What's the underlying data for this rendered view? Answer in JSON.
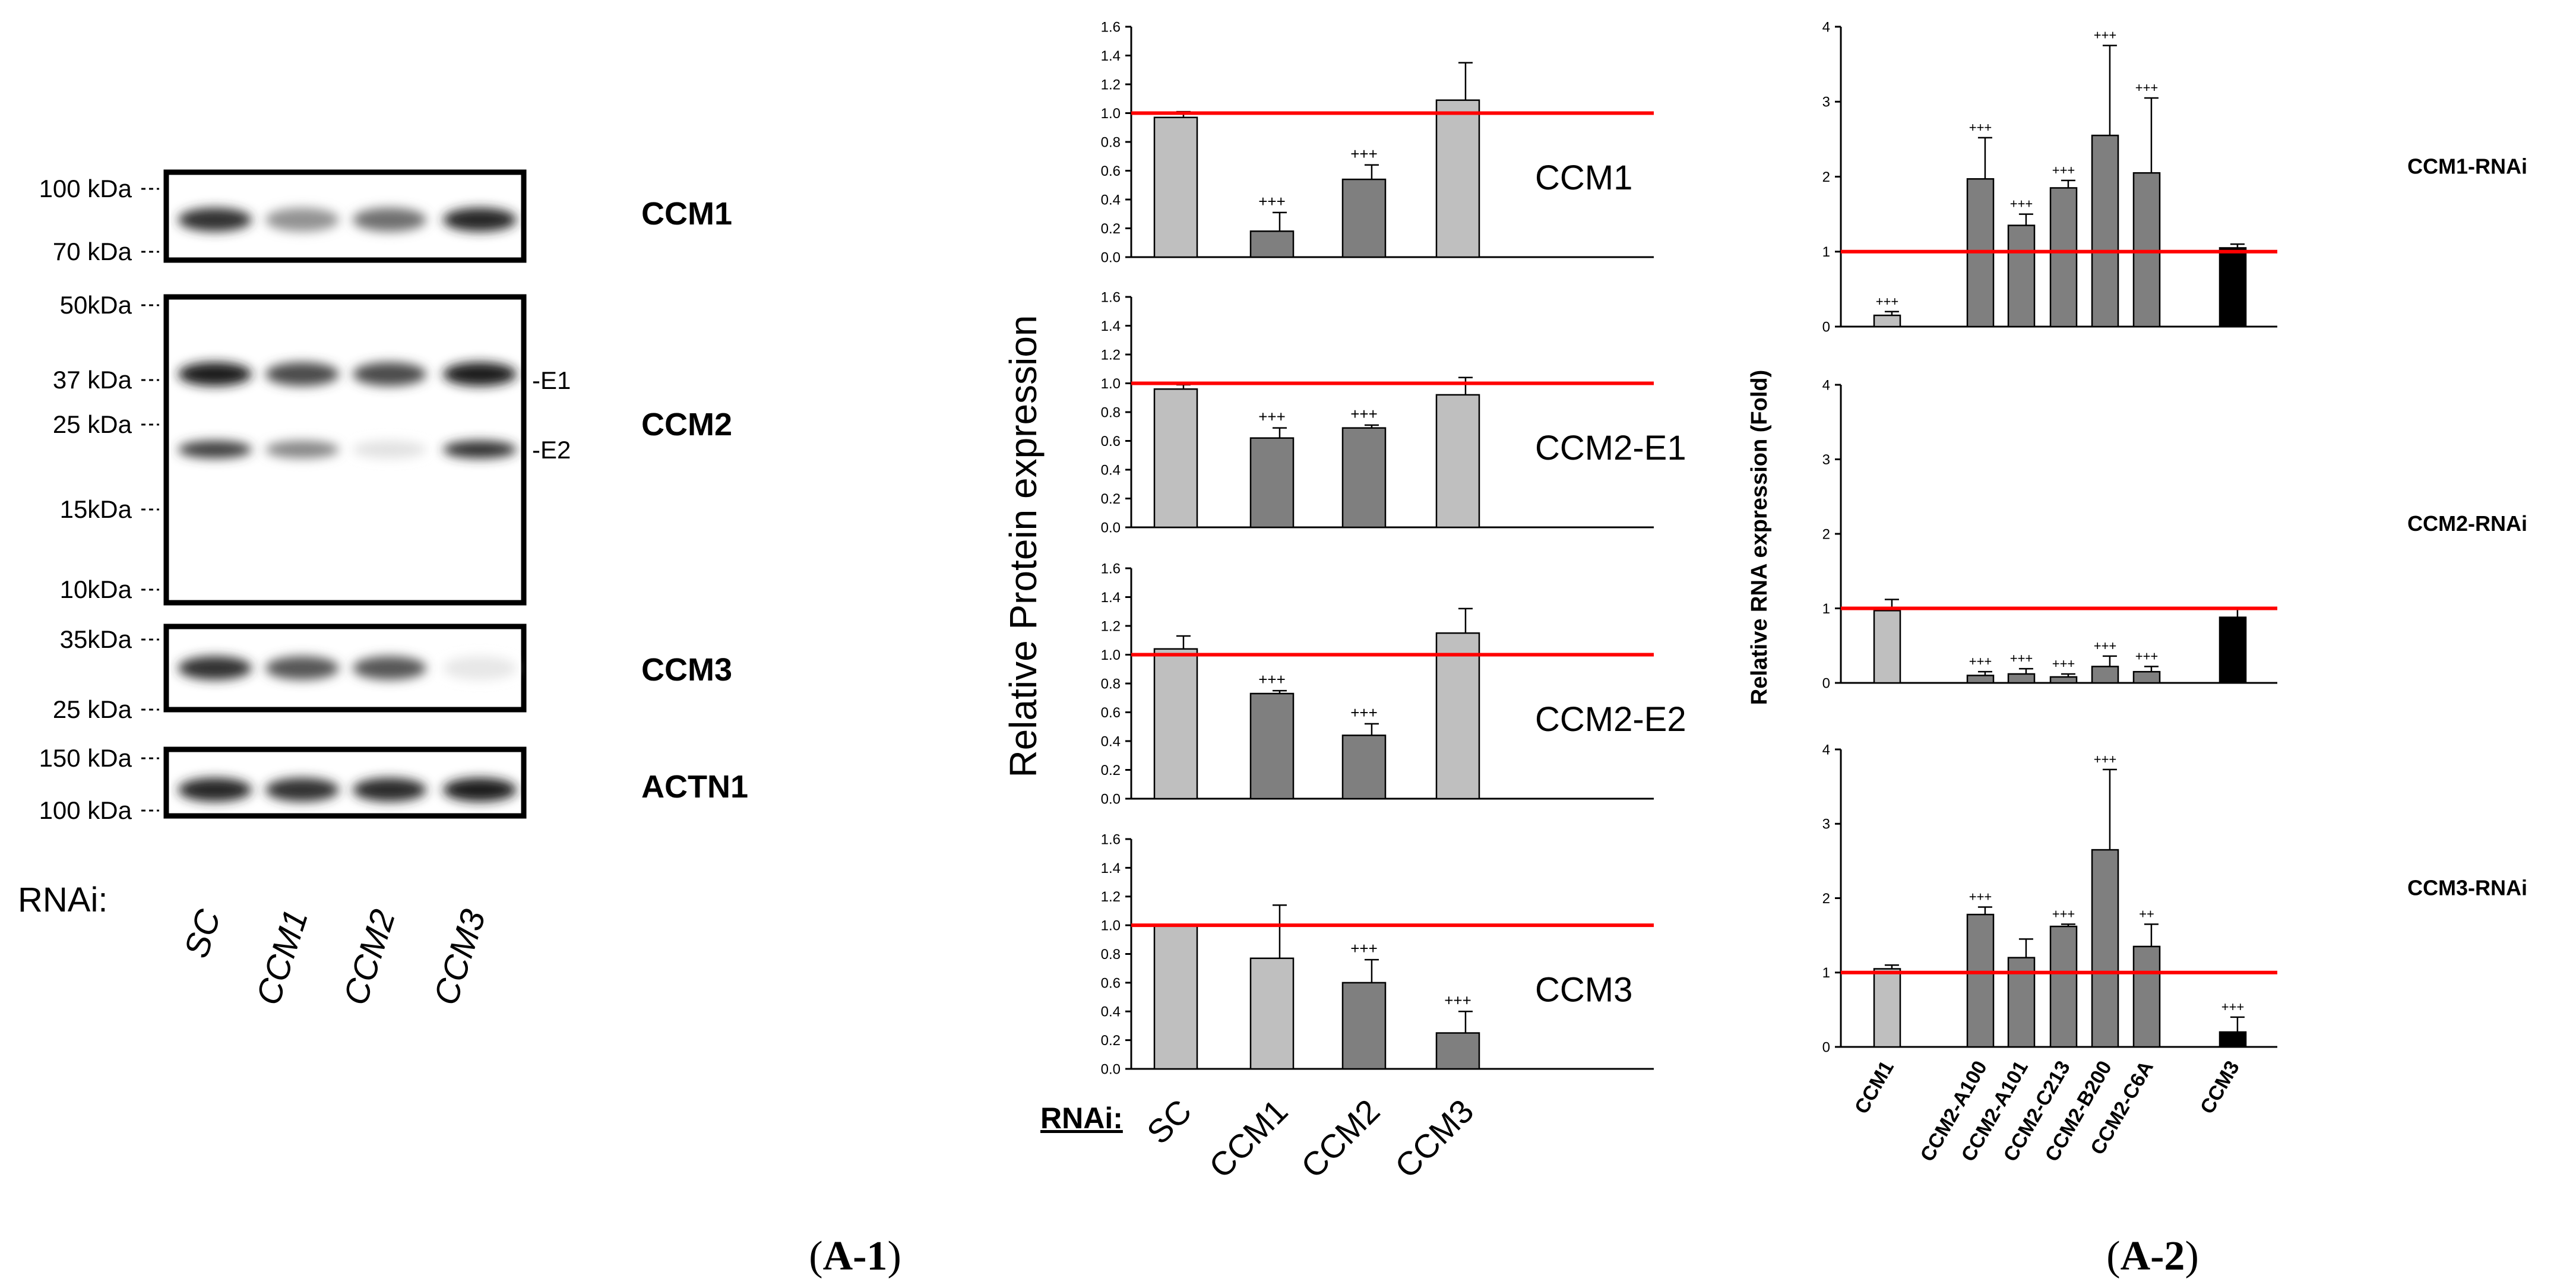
{
  "western_blot": {
    "panels": [
      {
        "label": "CCM1",
        "markers": [
          "100 kDa",
          "70 kDa"
        ],
        "bands": [
          0.85,
          0.45,
          0.6,
          0.9
        ]
      },
      {
        "label": "CCM2",
        "markers": [
          "50kDa",
          "37 kDa",
          "25 kDa",
          "15kDa",
          "10kDa"
        ],
        "band_tags": [
          "E1",
          "E2"
        ],
        "bands_e1": [
          0.95,
          0.75,
          0.75,
          0.95
        ],
        "bands_e2": [
          0.8,
          0.5,
          0.12,
          0.85
        ]
      },
      {
        "label": "CCM3",
        "markers": [
          "35kDa",
          "25 kDa"
        ],
        "bands": [
          0.85,
          0.7,
          0.7,
          0.1
        ]
      },
      {
        "label": "ACTN1",
        "markers": [
          "150 kDa",
          "100 kDa"
        ],
        "bands": [
          0.9,
          0.85,
          0.88,
          0.95
        ]
      }
    ],
    "rnai_label": "RNAi:",
    "lanes": [
      "SC",
      "CCM1",
      "CCM2",
      "CCM3"
    ]
  },
  "figure_labels": {
    "a1": "(A-1)",
    "a1_bold": "A-1",
    "a2": "(A-2)",
    "a2_bold": "A-2"
  },
  "chart_data": [
    {
      "type": "bar",
      "ylabel": "Relative Protein expression",
      "categories": [
        "SC",
        "CCM1",
        "CCM2",
        "CCM3"
      ],
      "category_axis_label": "RNAi:",
      "ylim": [
        0,
        1.6
      ],
      "yticks": [
        "0.0",
        "0.2",
        "0.4",
        "0.6",
        "0.8",
        "1.0",
        "1.2",
        "1.4",
        "1.6"
      ],
      "reference_line": 1.0,
      "colors": {
        "light": "#bfbfbf",
        "dark": "#7f7f7f",
        "reference": "#ff0000"
      },
      "panels": [
        {
          "title": "CCM1",
          "values": [
            0.97,
            0.18,
            0.54,
            1.09
          ],
          "errors": [
            0.04,
            0.13,
            0.1,
            0.26
          ],
          "annotations": [
            "",
            "+++",
            "+++",
            ""
          ],
          "shades": [
            "light",
            "dark",
            "dark",
            "light"
          ]
        },
        {
          "title": "CCM2-E1",
          "values": [
            0.96,
            0.62,
            0.69,
            0.92
          ],
          "errors": [
            0.03,
            0.07,
            0.02,
            0.12
          ],
          "annotations": [
            "",
            "+++",
            "+++",
            ""
          ],
          "shades": [
            "light",
            "dark",
            "dark",
            "light"
          ]
        },
        {
          "title": "CCM2-E2",
          "values": [
            1.04,
            0.73,
            0.44,
            1.15
          ],
          "errors": [
            0.09,
            0.02,
            0.08,
            0.17
          ],
          "annotations": [
            "",
            "+++",
            "+++",
            ""
          ],
          "shades": [
            "light",
            "dark",
            "dark",
            "light"
          ]
        },
        {
          "title": "CCM3",
          "values": [
            1.0,
            0.77,
            0.6,
            0.25
          ],
          "errors": [
            0.0,
            0.37,
            0.16,
            0.15
          ],
          "annotations": [
            "",
            "",
            "+++",
            "+++"
          ],
          "shades": [
            "light",
            "light",
            "dark",
            "dark"
          ]
        }
      ]
    },
    {
      "type": "bar",
      "ylabel": "Relative RNA expression (Fold)",
      "categories": [
        "CCM1",
        "CCM2-A100",
        "CCM2-A101",
        "CCM2-C213",
        "CCM2-B200",
        "CCM2-C6A",
        "CCM3"
      ],
      "ylim": [
        0,
        4
      ],
      "yticks": [
        "0",
        "1",
        "2",
        "3",
        "4"
      ],
      "reference_line": 1.0,
      "colors": {
        "light": "#bfbfbf",
        "dark": "#7f7f7f",
        "black": "#000000",
        "reference": "#ff0000"
      },
      "panels": [
        {
          "title": "CCM1-RNAi",
          "values": [
            0.15,
            1.97,
            1.35,
            1.85,
            2.55,
            2.05,
            1.05
          ],
          "errors": [
            0.05,
            0.55,
            0.15,
            0.1,
            1.2,
            1.0,
            0.05
          ],
          "annotations": [
            "+++",
            "+++",
            "+++",
            "+++",
            "+++",
            "+++",
            ""
          ],
          "shades": [
            "light",
            "dark",
            "dark",
            "dark",
            "dark",
            "dark",
            "black"
          ]
        },
        {
          "title": "CCM2-RNAi",
          "values": [
            0.97,
            0.1,
            0.12,
            0.08,
            0.22,
            0.15,
            0.88
          ],
          "errors": [
            0.15,
            0.05,
            0.07,
            0.04,
            0.14,
            0.07,
            0.12
          ],
          "annotations": [
            "",
            "+++",
            "+++",
            "+++",
            "+++",
            "+++",
            ""
          ],
          "shades": [
            "light",
            "dark",
            "dark",
            "dark",
            "dark",
            "dark",
            "black"
          ]
        },
        {
          "title": "CCM3-RNAi",
          "values": [
            1.05,
            1.78,
            1.2,
            1.62,
            2.65,
            1.35,
            0.2
          ],
          "errors": [
            0.05,
            0.1,
            0.25,
            0.03,
            1.08,
            0.3,
            0.2
          ],
          "annotations": [
            "",
            "+++",
            "",
            "+++",
            "+++",
            "++",
            "+++"
          ],
          "shades": [
            "light",
            "dark",
            "dark",
            "dark",
            "dark",
            "dark",
            "black"
          ]
        }
      ]
    }
  ]
}
